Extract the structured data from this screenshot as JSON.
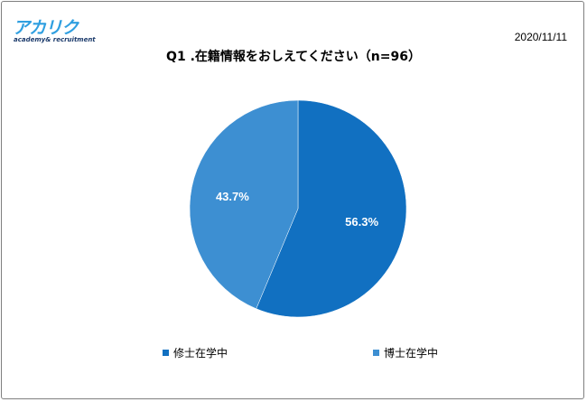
{
  "logo": {
    "main": "アカリク",
    "sub": "academy& recruitment"
  },
  "date": "2020/11/11",
  "chart_data": {
    "type": "pie",
    "title": "Q1 .在籍情報をおしえてください（n=96）",
    "slices": [
      {
        "name": "修士在学中",
        "value": 56.3,
        "label": "56.3%",
        "color": "#1170c1"
      },
      {
        "name": "博士在学中",
        "value": 43.7,
        "label": "43.7%",
        "color": "#3d8fd2"
      }
    ],
    "start_angle": "12 o'clock",
    "direction": "clockwise",
    "legend_position": "bottom"
  }
}
